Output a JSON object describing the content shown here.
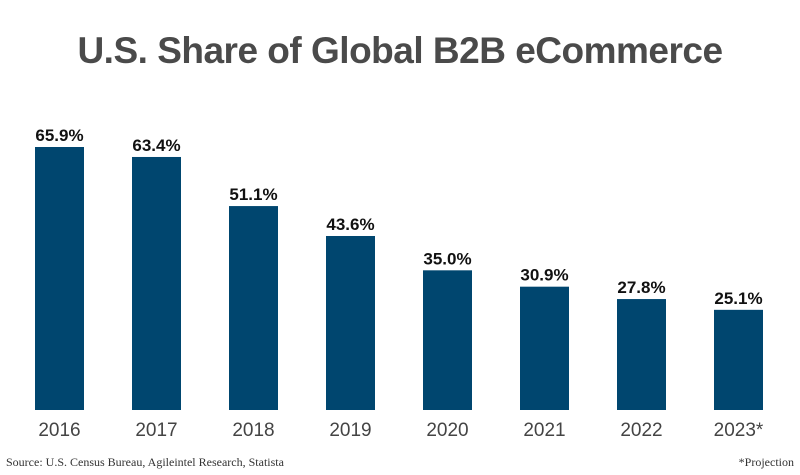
{
  "chart_data": {
    "type": "bar",
    "title": "U.S. Share of Global B2B eCommerce",
    "categories": [
      "2016",
      "2017",
      "2018",
      "2019",
      "2020",
      "2021",
      "2022",
      "2023*"
    ],
    "values": [
      65.9,
      63.4,
      51.1,
      43.6,
      35.0,
      30.9,
      27.8,
      25.1
    ],
    "data_labels": [
      "65.9%",
      "63.4%",
      "51.1%",
      "43.6%",
      "35.0%",
      "30.9%",
      "27.8%",
      "25.1%"
    ],
    "unit": "%",
    "ylim": [
      0,
      70
    ],
    "grid": false,
    "bar_color": "#00466f",
    "source": "Source: U.S. Census Bureau, Agileintel Research, Statista",
    "note": "*Projection"
  }
}
